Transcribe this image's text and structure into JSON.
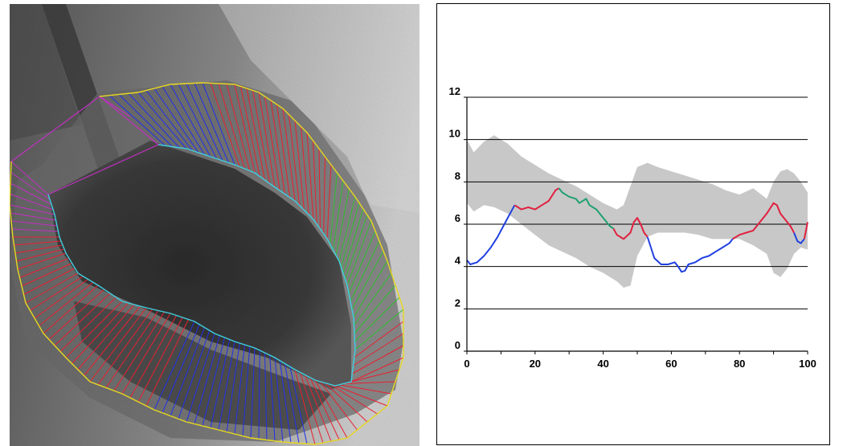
{
  "left_panel": {
    "description_icon": "ventriculogram-image-with-segmentation-overlay",
    "colors": {
      "outer_contour": "#e8d820",
      "inner_contour": "#3fd0e0",
      "chord_red": "#e82030",
      "chord_blue": "#2030e8",
      "chord_green": "#30c030",
      "chord_magenta": "#c030c0"
    }
  },
  "chart_data": {
    "type": "line",
    "ylim": [
      0,
      12
    ],
    "xlim": [
      0,
      100
    ],
    "yticks": [
      "0",
      "2",
      "4",
      "6",
      "8",
      "10",
      "12"
    ],
    "xticks": [
      "0",
      "20",
      "40",
      "60",
      "80",
      "100"
    ],
    "grid": "horizontal",
    "band": {
      "color": "#c8c8c8",
      "x": [
        0,
        2,
        5,
        8,
        12,
        16,
        20,
        24,
        28,
        32,
        36,
        40,
        44,
        46,
        48,
        50,
        53,
        56,
        60,
        64,
        68,
        72,
        76,
        80,
        84,
        88,
        90,
        92,
        94,
        96,
        98,
        100
      ],
      "upper": [
        10.0,
        9.4,
        9.9,
        10.2,
        9.8,
        9.2,
        8.8,
        8.4,
        8.1,
        7.8,
        7.4,
        7.0,
        6.7,
        6.9,
        7.8,
        8.7,
        8.9,
        8.7,
        8.5,
        8.3,
        8.1,
        7.9,
        7.6,
        7.4,
        7.7,
        7.2,
        8.0,
        8.5,
        8.6,
        8.4,
        8.0,
        7.5
      ],
      "lower": [
        7.0,
        6.6,
        6.9,
        6.8,
        6.5,
        6.0,
        5.5,
        5.0,
        4.7,
        4.4,
        4.0,
        3.7,
        3.3,
        3.0,
        3.1,
        4.5,
        5.4,
        5.6,
        5.6,
        5.6,
        5.5,
        5.3,
        5.3,
        5.3,
        5.0,
        4.6,
        3.7,
        3.5,
        3.9,
        4.6,
        4.9,
        4.8
      ]
    },
    "series": [
      {
        "color": "#2040e0",
        "segments": [
          [
            [
              0,
              4.3
            ],
            [
              1,
              4.1
            ],
            [
              3,
              4.2
            ],
            [
              5,
              4.5
            ],
            [
              7,
              4.9
            ],
            [
              9,
              5.4
            ],
            [
              11,
              6.0
            ],
            [
              13,
              6.6
            ],
            [
              14,
              6.9
            ]
          ],
          [
            [
              53,
              5.4
            ],
            [
              54,
              4.9
            ],
            [
              55,
              4.4
            ],
            [
              57,
              4.1
            ],
            [
              59,
              4.1
            ],
            [
              61,
              4.2
            ],
            [
              62,
              4.0
            ],
            [
              63,
              3.75
            ],
            [
              64,
              3.8
            ],
            [
              65,
              4.1
            ],
            [
              67,
              4.2
            ],
            [
              69,
              4.4
            ],
            [
              71,
              4.5
            ],
            [
              73,
              4.7
            ],
            [
              75,
              4.9
            ],
            [
              77,
              5.1
            ],
            [
              78,
              5.3
            ]
          ],
          [
            [
              96,
              5.6
            ],
            [
              97,
              5.2
            ],
            [
              98,
              5.1
            ],
            [
              99,
              5.3
            ]
          ]
        ]
      },
      {
        "color": "#e02040",
        "segments": [
          [
            [
              14,
              6.9
            ],
            [
              15,
              6.8
            ],
            [
              16,
              6.7
            ],
            [
              18,
              6.8
            ],
            [
              20,
              6.7
            ],
            [
              22,
              6.9
            ],
            [
              24,
              7.1
            ],
            [
              26,
              7.6
            ],
            [
              27,
              7.7
            ]
          ],
          [
            [
              43,
              5.8
            ],
            [
              44,
              5.5
            ],
            [
              46,
              5.3
            ],
            [
              48,
              5.6
            ],
            [
              49,
              6.1
            ],
            [
              50,
              6.3
            ],
            [
              51,
              6.0
            ],
            [
              52,
              5.6
            ],
            [
              53,
              5.4
            ]
          ],
          [
            [
              78,
              5.3
            ],
            [
              80,
              5.5
            ],
            [
              82,
              5.6
            ],
            [
              84,
              5.7
            ],
            [
              86,
              6.1
            ],
            [
              88,
              6.5
            ],
            [
              90,
              7.0
            ],
            [
              91,
              6.9
            ],
            [
              92,
              6.5
            ],
            [
              94,
              6.1
            ],
            [
              95,
              5.9
            ],
            [
              96,
              5.6
            ]
          ],
          [
            [
              99,
              5.3
            ],
            [
              100,
              6.1
            ]
          ]
        ]
      },
      {
        "color": "#20a070",
        "segments": [
          [
            [
              27,
              7.7
            ],
            [
              28,
              7.5
            ],
            [
              30,
              7.3
            ],
            [
              32,
              7.2
            ],
            [
              33,
              7.0
            ],
            [
              35,
              7.2
            ],
            [
              36,
              6.9
            ],
            [
              38,
              6.7
            ],
            [
              40,
              6.3
            ],
            [
              42,
              5.9
            ],
            [
              43,
              5.8
            ]
          ]
        ]
      }
    ]
  }
}
